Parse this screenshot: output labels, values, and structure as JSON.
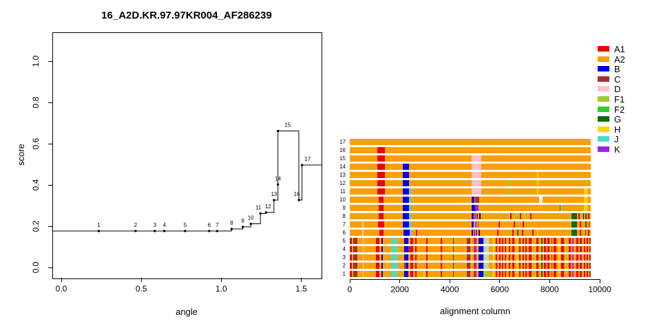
{
  "title": "16_A2D.KR.97.97KR004_AF286239",
  "colors": {
    "A1": "#EE0000",
    "A2": "#F7A008",
    "B": "#0000EE",
    "C": "#A53030",
    "D": "#FFC0CB",
    "F1": "#9ACD32",
    "F2": "#33CC33",
    "G": "#0E6B0E",
    "H": "#FFD700",
    "J": "#4ED9C7",
    "K": "#A020F0",
    "W": "#FFFFFF",
    "P": "#BCD8A8",
    "M": "#E01878",
    "line": "#000000"
  },
  "legend": {
    "items": [
      {
        "label": "A1"
      },
      {
        "label": "A2"
      },
      {
        "label": "B"
      },
      {
        "label": "C"
      },
      {
        "label": "D"
      },
      {
        "label": "F1"
      },
      {
        "label": "F2"
      },
      {
        "label": "G"
      },
      {
        "label": "H"
      },
      {
        "label": "J"
      },
      {
        "label": "K"
      }
    ]
  },
  "chart_data": [
    {
      "type": "line",
      "title": "16_A2D.KR.97.97KR004_AF286239",
      "xlabel": "angle",
      "ylabel": "score",
      "xlim": [
        -0.056,
        1.622
      ],
      "ylim": [
        -0.05,
        1.14
      ],
      "xticks": [
        "0.0",
        "0.5",
        "1.0",
        "1.5"
      ],
      "xtick_values": [
        0.0,
        0.5,
        1.0,
        1.5
      ],
      "yticks": [
        "0.0",
        "0.2",
        "0.4",
        "0.6",
        "0.8",
        "1.0"
      ],
      "ytick_values": [
        0.0,
        0.2,
        0.4,
        0.6,
        0.8,
        1.0
      ],
      "step": "post",
      "grid": false,
      "points": [
        {
          "label": "1",
          "x": 0.23,
          "y": 0.18
        },
        {
          "label": "2",
          "x": 0.46,
          "y": 0.18
        },
        {
          "label": "3",
          "x": 0.58,
          "y": 0.18
        },
        {
          "label": "4",
          "x": 0.64,
          "y": 0.18
        },
        {
          "label": "5",
          "x": 0.77,
          "y": 0.18
        },
        {
          "label": "6",
          "x": 0.92,
          "y": 0.18
        },
        {
          "label": "7",
          "x": 0.97,
          "y": 0.18
        },
        {
          "label": "8",
          "x": 1.06,
          "y": 0.19
        },
        {
          "label": "9",
          "x": 1.13,
          "y": 0.2
        },
        {
          "label": "10",
          "x": 1.18,
          "y": 0.215
        },
        {
          "label": "11",
          "x": 1.24,
          "y": 0.265,
          "ldx": -3
        },
        {
          "label": "12",
          "x": 1.275,
          "y": 0.27,
          "ldx": 3
        },
        {
          "label": "13",
          "x": 1.325,
          "y": 0.33
        },
        {
          "label": "14",
          "x": 1.35,
          "y": 0.405
        },
        {
          "label": "15",
          "x": 1.35,
          "y": 0.665,
          "ldx": 14
        },
        {
          "label": "16",
          "x": 1.48,
          "y": 0.33,
          "ldx": -3
        },
        {
          "label": "17",
          "x": 1.5,
          "y": 0.5,
          "ldx": 8
        }
      ]
    },
    {
      "type": "heatmap",
      "xlabel": "alignment column",
      "xticks": [
        "0",
        "2000",
        "4000",
        "6000",
        "8000",
        "10000"
      ],
      "xtick_values": [
        0,
        2000,
        4000,
        6000,
        8000,
        10000
      ],
      "xmax": 10000,
      "seq_len": 9640,
      "background_subtype": "A2",
      "dense_base": [
        [
          0,
          80,
          "A1"
        ],
        [
          145,
          290,
          "C"
        ],
        [
          520,
          560,
          "D"
        ],
        [
          1060,
          1185,
          "A1"
        ],
        [
          1280,
          1325,
          "B"
        ],
        [
          1650,
          1905,
          "J"
        ],
        [
          2180,
          2350,
          "B"
        ],
        [
          2420,
          2545,
          "A1"
        ],
        [
          2620,
          2680,
          "A1"
        ],
        [
          3060,
          3110,
          "A1"
        ],
        [
          3650,
          3700,
          "A1"
        ],
        [
          4120,
          4170,
          "G"
        ],
        [
          4690,
          4835,
          "C"
        ],
        [
          4960,
          5080,
          "M"
        ],
        [
          5150,
          5345,
          "B"
        ],
        [
          5370,
          5565,
          "P"
        ],
        [
          5740,
          5790,
          "H"
        ],
        [
          5850,
          5905,
          "A1"
        ],
        [
          5970,
          6020,
          "A1"
        ],
        [
          6080,
          6140,
          "A1"
        ],
        [
          6210,
          6265,
          "C"
        ],
        [
          6360,
          6425,
          "A1"
        ],
        [
          6510,
          6575,
          "A1"
        ],
        [
          6660,
          6710,
          "H"
        ],
        [
          6770,
          6840,
          "A1"
        ],
        [
          6905,
          6960,
          "C"
        ],
        [
          7020,
          7070,
          "A1"
        ],
        [
          7170,
          7260,
          "A1"
        ],
        [
          7355,
          7405,
          "F1"
        ],
        [
          7470,
          7560,
          "A1"
        ],
        [
          7655,
          7705,
          "G"
        ],
        [
          7770,
          7840,
          "A1"
        ],
        [
          7910,
          7985,
          "A1"
        ],
        [
          8060,
          8110,
          "C"
        ],
        [
          8165,
          8255,
          "A1"
        ],
        [
          8355,
          8405,
          "H"
        ],
        [
          8465,
          8565,
          "A1"
        ],
        [
          8660,
          8710,
          "F1"
        ],
        [
          8770,
          8840,
          "A1"
        ],
        [
          8910,
          8965,
          "K"
        ],
        [
          9060,
          9140,
          "A1"
        ],
        [
          9210,
          9285,
          "C"
        ],
        [
          9360,
          9410,
          "A1"
        ],
        [
          9465,
          9525,
          "A1"
        ],
        [
          9580,
          9640,
          "C"
        ]
      ],
      "rows": [
        {
          "id": "17",
          "dense": false,
          "segments": []
        },
        {
          "id": "16",
          "dense": false,
          "segments": [
            [
              1100,
              1405,
              "A1"
            ]
          ]
        },
        {
          "id": "15",
          "dense": false,
          "segments": [
            [
              1100,
              1405,
              "A1"
            ],
            [
              4880,
              5260,
              "D"
            ]
          ]
        },
        {
          "id": "14",
          "dense": false,
          "segments": [
            [
              1100,
              1405,
              "A1"
            ],
            [
              2120,
              2370,
              "B"
            ],
            [
              4880,
              5260,
              "D"
            ]
          ]
        },
        {
          "id": "13",
          "dense": false,
          "segments": [
            [
              1100,
              1405,
              "A1"
            ],
            [
              2120,
              2370,
              "B"
            ],
            [
              4880,
              5260,
              "D"
            ],
            [
              7480,
              7545,
              "H"
            ]
          ]
        },
        {
          "id": "12",
          "dense": false,
          "segments": [
            [
              1100,
              1405,
              "A1"
            ],
            [
              2120,
              2370,
              "B"
            ],
            [
              4880,
              5260,
              "D"
            ],
            [
              6400,
              6455,
              "F1"
            ],
            [
              7480,
              7545,
              "H"
            ]
          ]
        },
        {
          "id": "11",
          "dense": false,
          "segments": [
            [
              1100,
              1405,
              "A1"
            ],
            [
              2120,
              2375,
              "B"
            ],
            [
              2375,
              2445,
              "J"
            ],
            [
              4880,
              5260,
              "D"
            ],
            [
              6400,
              6455,
              "F1"
            ],
            [
              7480,
              7545,
              "H"
            ],
            [
              9370,
              9510,
              "H"
            ]
          ]
        },
        {
          "id": "10",
          "dense": false,
          "segments": [
            [
              1160,
              1360,
              "A1"
            ],
            [
              2120,
              2375,
              "B"
            ],
            [
              2375,
              2445,
              "J"
            ],
            [
              4880,
              5000,
              "B"
            ],
            [
              5000,
              5175,
              "C"
            ],
            [
              7575,
              7715,
              "W"
            ],
            [
              8370,
              8425,
              "F1"
            ],
            [
              9370,
              9510,
              "H"
            ]
          ]
        },
        {
          "id": "9",
          "dense": false,
          "segments": [
            [
              1160,
              1360,
              "A1"
            ],
            [
              2120,
              2375,
              "B"
            ],
            [
              2375,
              2445,
              "J"
            ],
            [
              4880,
              5010,
              "B"
            ],
            [
              5010,
              5155,
              "K"
            ],
            [
              8395,
              8440,
              "K"
            ],
            [
              8440,
              8495,
              "F1"
            ],
            [
              9370,
              9510,
              "H"
            ]
          ]
        },
        {
          "id": "8",
          "dense": false,
          "segments": [
            [
              1160,
              1360,
              "A1"
            ],
            [
              2120,
              2375,
              "B"
            ],
            [
              2375,
              2445,
              "J"
            ],
            [
              4880,
              4960,
              "B"
            ],
            [
              4975,
              5045,
              "K"
            ],
            [
              5070,
              5125,
              "C"
            ],
            [
              5180,
              5230,
              "B"
            ],
            [
              6280,
              6330,
              "F1"
            ],
            [
              6430,
              6480,
              "A1"
            ],
            [
              6620,
              6665,
              "F1"
            ],
            [
              6800,
              6855,
              "C"
            ],
            [
              6960,
              7010,
              "H"
            ],
            [
              7080,
              7130,
              "F1"
            ],
            [
              7230,
              7270,
              "A1"
            ],
            [
              8870,
              9090,
              "G"
            ],
            [
              9150,
              9205,
              "A1"
            ],
            [
              9330,
              9370,
              "B"
            ],
            [
              9420,
              9465,
              "G"
            ],
            [
              9520,
              9575,
              "A1"
            ]
          ]
        },
        {
          "id": "7",
          "dense": false,
          "segments": [
            [
              500,
              560,
              "D"
            ],
            [
              1130,
              1380,
              "A1"
            ],
            [
              2120,
              2375,
              "B"
            ],
            [
              2375,
              2445,
              "J"
            ],
            [
              4880,
              4945,
              "B"
            ],
            [
              4950,
              4995,
              "D"
            ],
            [
              5005,
              5065,
              "K"
            ],
            [
              5120,
              5165,
              "C"
            ],
            [
              5950,
              6000,
              "A1"
            ],
            [
              6350,
              6400,
              "F1"
            ],
            [
              6550,
              6600,
              "A1"
            ],
            [
              6760,
              6805,
              "F1"
            ],
            [
              6910,
              6965,
              "A1"
            ],
            [
              7100,
              7150,
              "F1"
            ],
            [
              8870,
              9090,
              "G"
            ],
            [
              9200,
              9255,
              "A1"
            ],
            [
              9430,
              9470,
              "G"
            ],
            [
              9550,
              9600,
              "A1"
            ]
          ]
        },
        {
          "id": "6",
          "dense": false,
          "segments": [
            [
              500,
              560,
              "D"
            ],
            [
              1180,
              1345,
              "A1"
            ],
            [
              2150,
              2405,
              "B"
            ],
            [
              2405,
              2475,
              "J"
            ],
            [
              2650,
              2700,
              "A1"
            ],
            [
              4880,
              4935,
              "B"
            ],
            [
              4955,
              5005,
              "K"
            ],
            [
              5055,
              5105,
              "C"
            ],
            [
              5160,
              5205,
              "B"
            ],
            [
              5900,
              5950,
              "A1"
            ],
            [
              6300,
              6350,
              "F1"
            ],
            [
              6500,
              6550,
              "A1"
            ],
            [
              6700,
              6750,
              "G"
            ],
            [
              6900,
              6950,
              "A1"
            ],
            [
              7100,
              7150,
              "F1"
            ],
            [
              7300,
              7350,
              "A1"
            ],
            [
              7500,
              7540,
              "H"
            ],
            [
              8870,
              9090,
              "G"
            ],
            [
              9200,
              9250,
              "A1"
            ],
            [
              9420,
              9460,
              "G"
            ],
            [
              9540,
              9590,
              "A1"
            ]
          ]
        },
        {
          "id": "5",
          "dense": true,
          "segments": []
        },
        {
          "id": "4",
          "dense": true,
          "segments": [
            [
              2355,
              2420,
              "C"
            ]
          ]
        },
        {
          "id": "3",
          "dense": true,
          "segments": [
            [
              9210,
              9285,
              "M"
            ]
          ]
        },
        {
          "id": "2",
          "dense": true,
          "segments": [
            [
              1480,
              1525,
              "H"
            ],
            [
              2180,
              2265,
              "C"
            ]
          ]
        },
        {
          "id": "1",
          "dense": true,
          "segments": [
            [
              2950,
              3000,
              "H"
            ],
            [
              5370,
              5565,
              "F1"
            ]
          ]
        }
      ]
    }
  ]
}
